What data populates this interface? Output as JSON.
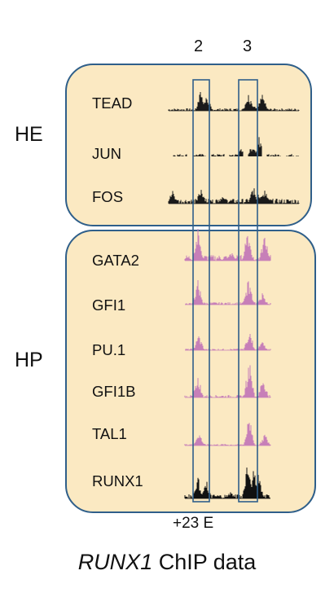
{
  "columns": [
    "2",
    "3"
  ],
  "groups": [
    {
      "name": "HE",
      "tracks": [
        "TEAD",
        "JUN",
        "FOS"
      ]
    },
    {
      "name": "HP",
      "tracks": [
        "GATA2",
        "GFI1",
        "PU.1",
        "GFI1B",
        "TAL1",
        "RUNX1"
      ]
    }
  ],
  "enhancer_label": "+23 E",
  "caption": {
    "gene": "RUNX1",
    "rest": " ChIP data"
  },
  "colors": {
    "panel_fill": "#fbe9c2",
    "panel_border": "#2f5f8a",
    "he_tracks": "#1a1a1a",
    "hp_tracks": "#c77fb8",
    "runx1_track": "#111111"
  }
}
